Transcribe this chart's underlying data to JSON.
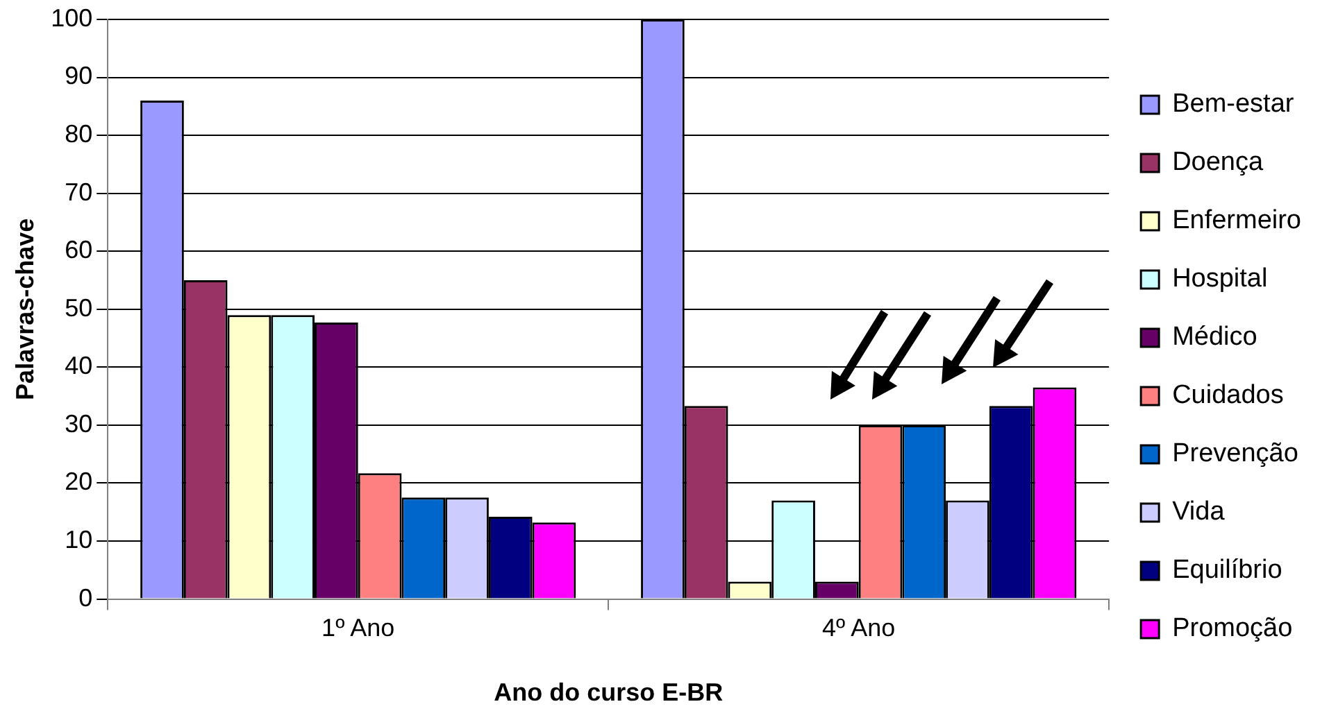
{
  "chart_data": {
    "type": "bar",
    "xlabel": "Ano do curso E-BR",
    "ylabel": "Palavras-chave",
    "categories": [
      "1º Ano",
      "4º Ano"
    ],
    "series": [
      {
        "name": "Bem-estar",
        "color": "#9999ff",
        "values": [
          86,
          100
        ]
      },
      {
        "name": "Doença",
        "color": "#993366",
        "values": [
          55,
          33.3
        ]
      },
      {
        "name": "Enfermeiro",
        "color": "#ffffcc",
        "values": [
          49,
          3
        ]
      },
      {
        "name": "Hospital",
        "color": "#ccffff",
        "values": [
          49,
          17
        ]
      },
      {
        "name": "Médico",
        "color": "#660066",
        "values": [
          47.7,
          3
        ]
      },
      {
        "name": "Cuidados",
        "color": "#ff8080",
        "values": [
          21.7,
          30
        ]
      },
      {
        "name": "Prevenção",
        "color": "#0066cc",
        "values": [
          17.5,
          30
        ]
      },
      {
        "name": "Vida",
        "color": "#ccccff",
        "values": [
          17.5,
          17
        ]
      },
      {
        "name": "Equilíbrio",
        "color": "#000080",
        "values": [
          14.2,
          33.3
        ]
      },
      {
        "name": "Promoção",
        "color": "#ff00ff",
        "values": [
          13.2,
          36.5
        ]
      }
    ],
    "ylim": [
      0,
      100
    ],
    "yticks": [
      0,
      10,
      20,
      30,
      40,
      50,
      60,
      70,
      80,
      90,
      100
    ],
    "grid": "y",
    "legend": "right"
  }
}
